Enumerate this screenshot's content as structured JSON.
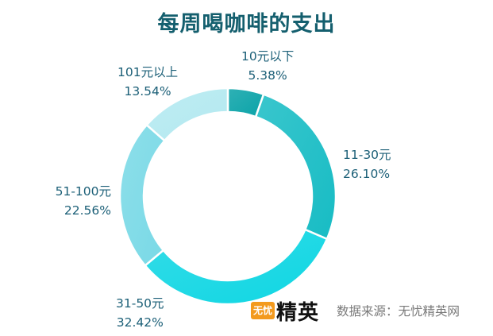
{
  "chart_data": {
    "type": "pie",
    "donut": true,
    "title": "每周喝咖啡的支出",
    "categories": [
      "10元以下",
      "11-30元",
      "31-50元",
      "51-100元",
      "101元以上"
    ],
    "values": [
      5.38,
      26.1,
      32.42,
      22.56,
      13.54
    ],
    "value_labels": [
      "5.38%",
      "26.10%",
      "32.42%",
      "22.56%",
      "13.54%"
    ],
    "colors": [
      "#0aa3a8",
      "#17bcc4",
      "#0fd6e3",
      "#79d9e6",
      "#b3e9f0"
    ]
  },
  "source_text": "数据来源：无忧精英网",
  "brand": {
    "badge": "无忧",
    "name": "精英"
  }
}
